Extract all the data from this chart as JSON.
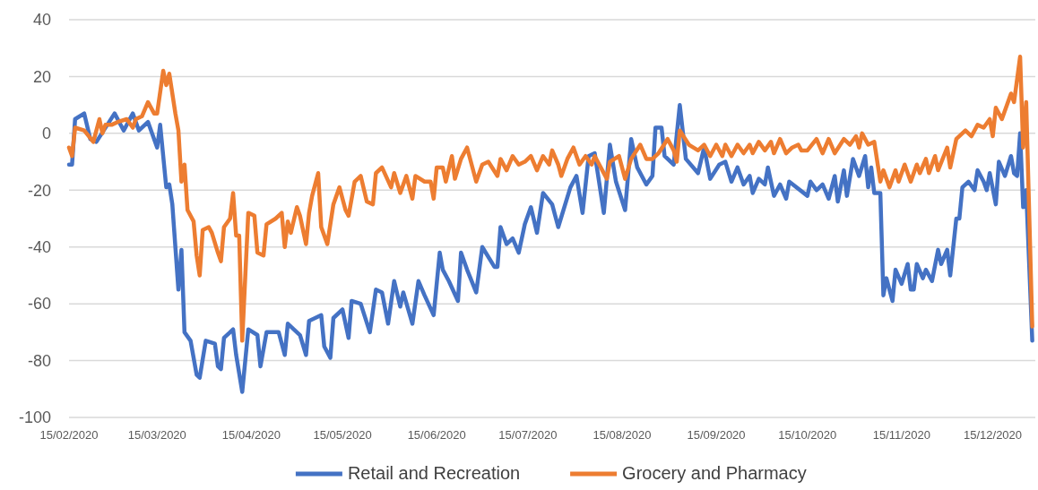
{
  "chart_data": {
    "type": "line",
    "xlim": [
      "2020-02-15",
      "2020-12-29"
    ],
    "ylim": [
      -100,
      40
    ],
    "yticks": [
      -100,
      -80,
      -60,
      -40,
      -20,
      0,
      20,
      40
    ],
    "xticks": [
      {
        "value": "2020-02-15",
        "label": "15/02/2020"
      },
      {
        "value": "2020-03-15",
        "label": "15/03/2020"
      },
      {
        "value": "2020-04-15",
        "label": "15/04/2020"
      },
      {
        "value": "2020-05-15",
        "label": "15/05/2020"
      },
      {
        "value": "2020-06-15",
        "label": "15/06/2020"
      },
      {
        "value": "2020-07-15",
        "label": "15/07/2020"
      },
      {
        "value": "2020-08-15",
        "label": "15/08/2020"
      },
      {
        "value": "2020-09-15",
        "label": "15/09/2020"
      },
      {
        "value": "2020-10-15",
        "label": "15/10/2020"
      },
      {
        "value": "2020-11-15",
        "label": "15/11/2020"
      },
      {
        "value": "2020-12-15",
        "label": "15/12/2020"
      }
    ],
    "grid": "y",
    "legend": "bottom",
    "line_style": "solid",
    "marker": "none",
    "series": [
      {
        "name": "Retail and Recreation",
        "color": "#4472c4",
        "x": [
          "2020-02-15",
          "2020-02-16",
          "2020-02-17",
          "2020-02-20",
          "2020-02-22",
          "2020-02-24",
          "2020-03-01",
          "2020-03-04",
          "2020-03-07",
          "2020-03-09",
          "2020-03-12",
          "2020-03-15",
          "2020-03-16",
          "2020-03-18",
          "2020-03-19",
          "2020-03-20",
          "2020-03-22",
          "2020-03-23",
          "2020-03-24",
          "2020-03-26",
          "2020-03-28",
          "2020-03-29",
          "2020-03-31",
          "2020-04-03",
          "2020-04-04",
          "2020-04-05",
          "2020-04-06",
          "2020-04-09",
          "2020-04-10",
          "2020-04-12",
          "2020-04-14",
          "2020-04-17",
          "2020-04-18",
          "2020-04-20",
          "2020-04-24",
          "2020-04-26",
          "2020-04-27",
          "2020-05-01",
          "2020-05-03",
          "2020-05-04",
          "2020-05-08",
          "2020-05-09",
          "2020-05-11",
          "2020-05-12",
          "2020-05-15",
          "2020-05-17",
          "2020-05-18",
          "2020-05-21",
          "2020-05-24",
          "2020-05-26",
          "2020-05-28",
          "2020-05-30",
          "2020-06-01",
          "2020-06-03",
          "2020-06-04",
          "2020-06-07",
          "2020-06-09",
          "2020-06-11",
          "2020-06-14",
          "2020-06-16",
          "2020-06-17",
          "2020-06-19",
          "2020-06-22",
          "2020-06-23",
          "2020-06-25",
          "2020-06-28",
          "2020-06-30",
          "2020-07-04",
          "2020-07-05",
          "2020-07-06",
          "2020-07-08",
          "2020-07-10",
          "2020-07-12",
          "2020-07-14",
          "2020-07-16",
          "2020-07-18",
          "2020-07-20",
          "2020-07-23",
          "2020-07-25",
          "2020-07-29",
          "2020-07-31",
          "2020-08-02",
          "2020-08-04",
          "2020-08-06",
          "2020-08-09",
          "2020-08-11",
          "2020-08-13",
          "2020-08-16",
          "2020-08-18",
          "2020-08-20",
          "2020-08-23",
          "2020-08-25",
          "2020-08-26",
          "2020-08-28",
          "2020-08-29",
          "2020-09-01",
          "2020-09-03",
          "2020-09-05",
          "2020-09-09",
          "2020-09-11",
          "2020-09-13",
          "2020-09-16",
          "2020-09-18",
          "2020-09-20",
          "2020-09-22",
          "2020-09-24",
          "2020-09-26",
          "2020-09-27",
          "2020-09-29",
          "2020-10-01",
          "2020-10-02",
          "2020-10-04",
          "2020-10-06",
          "2020-10-08",
          "2020-10-09",
          "2020-10-15",
          "2020-10-16",
          "2020-10-18",
          "2020-10-20",
          "2020-10-22",
          "2020-10-24",
          "2020-10-25",
          "2020-10-27",
          "2020-10-28",
          "2020-10-30",
          "2020-11-01",
          "2020-11-03",
          "2020-11-04",
          "2020-11-05",
          "2020-11-06",
          "2020-11-08",
          "2020-11-09",
          "2020-11-10",
          "2020-11-12",
          "2020-11-13",
          "2020-11-15",
          "2020-11-17",
          "2020-11-18",
          "2020-11-19",
          "2020-11-20",
          "2020-11-22",
          "2020-11-23",
          "2020-11-25",
          "2020-11-27",
          "2020-11-28",
          "2020-11-30",
          "2020-12-01",
          "2020-12-03",
          "2020-12-04",
          "2020-12-05",
          "2020-12-07",
          "2020-12-09",
          "2020-12-10",
          "2020-12-12",
          "2020-12-13",
          "2020-12-14",
          "2020-12-16",
          "2020-12-17",
          "2020-12-19",
          "2020-12-21",
          "2020-12-22",
          "2020-12-23",
          "2020-12-24",
          "2020-12-25",
          "2020-12-26",
          "2020-12-28"
        ],
        "values": [
          -11,
          -11,
          5,
          7,
          -2,
          -3,
          7,
          1,
          7,
          1,
          4,
          -5,
          3,
          -19,
          -18,
          -25,
          -55,
          -41,
          -70,
          -73,
          -85,
          -86,
          -73,
          -74,
          -82,
          -83,
          -72,
          -69,
          -78,
          -91,
          -69,
          -71,
          -82,
          -70,
          -70,
          -78,
          -67,
          -71,
          -78,
          -66,
          -64,
          -75,
          -79,
          -65,
          -62,
          -72,
          -59,
          -60,
          -70,
          -55,
          -56,
          -67,
          -52,
          -61,
          -56,
          -67,
          -52,
          -57,
          -64,
          -42,
          -48,
          -52,
          -59,
          -42,
          -48,
          -56,
          -40,
          -47,
          -47,
          -33,
          -39,
          -37,
          -42,
          -32,
          -26,
          -35,
          -21,
          -25,
          -33,
          -19,
          -15,
          -28,
          -8,
          -7,
          -28,
          -4,
          -17,
          -27,
          -2,
          -12,
          -18,
          -15,
          2,
          2,
          -8,
          -11,
          10,
          -9,
          -14,
          -5,
          -16,
          -11,
          -10,
          -17,
          -12,
          -18,
          -15,
          -21,
          -16,
          -18,
          -12,
          -22,
          -18,
          -23,
          -17,
          -22,
          -17,
          -20,
          -18,
          -23,
          -15,
          -24,
          -13,
          -22,
          -9,
          -15,
          -8,
          -19,
          -12,
          -21,
          -21,
          -57,
          -51,
          -59,
          -48,
          -53,
          -46,
          -55,
          -55,
          -46,
          -51,
          -48,
          -52,
          -41,
          -46,
          -41,
          -50,
          -30,
          -30,
          -19,
          -17,
          -20,
          -13,
          -17,
          -20,
          -14,
          -25,
          -10,
          -15,
          -8,
          -14,
          -15,
          0,
          -26,
          -20,
          -73
        ]
      },
      {
        "name": "Grocery and Pharmacy",
        "color": "#ed7d31",
        "x": [
          "2020-02-15",
          "2020-02-16",
          "2020-02-17",
          "2020-02-20",
          "2020-02-23",
          "2020-02-25",
          "2020-02-26",
          "2020-02-27",
          "2020-02-29",
          "2020-03-02",
          "2020-03-05",
          "2020-03-07",
          "2020-03-08",
          "2020-03-10",
          "2020-03-12",
          "2020-03-14",
          "2020-03-15",
          "2020-03-17",
          "2020-03-18",
          "2020-03-19",
          "2020-03-21",
          "2020-03-22",
          "2020-03-23",
          "2020-03-24",
          "2020-03-25",
          "2020-03-27",
          "2020-03-28",
          "2020-03-29",
          "2020-03-30",
          "2020-04-01",
          "2020-04-02",
          "2020-04-04",
          "2020-04-05",
          "2020-04-06",
          "2020-04-08",
          "2020-04-09",
          "2020-04-10",
          "2020-04-11",
          "2020-04-12",
          "2020-04-14",
          "2020-04-16",
          "2020-04-17",
          "2020-04-19",
          "2020-04-20",
          "2020-04-23",
          "2020-04-25",
          "2020-04-26",
          "2020-04-27",
          "2020-04-28",
          "2020-04-30",
          "2020-05-01",
          "2020-05-03",
          "2020-05-04",
          "2020-05-05",
          "2020-05-07",
          "2020-05-08",
          "2020-05-10",
          "2020-05-12",
          "2020-05-13",
          "2020-05-14",
          "2020-05-16",
          "2020-05-17",
          "2020-05-19",
          "2020-05-21",
          "2020-05-23",
          "2020-05-25",
          "2020-05-26",
          "2020-05-28",
          "2020-05-31",
          "2020-06-01",
          "2020-06-03",
          "2020-06-05",
          "2020-06-07",
          "2020-06-08",
          "2020-06-11",
          "2020-06-13",
          "2020-06-14",
          "2020-06-15",
          "2020-06-17",
          "2020-06-18",
          "2020-06-20",
          "2020-06-21",
          "2020-06-23",
          "2020-06-25",
          "2020-06-28",
          "2020-06-30",
          "2020-07-02",
          "2020-07-05",
          "2020-07-06",
          "2020-07-08",
          "2020-07-10",
          "2020-07-12",
          "2020-07-14",
          "2020-07-16",
          "2020-07-18",
          "2020-07-20",
          "2020-07-22",
          "2020-07-23",
          "2020-07-25",
          "2020-07-26",
          "2020-07-28",
          "2020-07-30",
          "2020-08-01",
          "2020-08-03",
          "2020-08-05",
          "2020-08-06",
          "2020-08-10",
          "2020-08-11",
          "2020-08-14",
          "2020-08-16",
          "2020-08-18",
          "2020-08-21",
          "2020-08-23",
          "2020-08-25",
          "2020-08-27",
          "2020-08-30",
          "2020-09-01",
          "2020-09-02",
          "2020-09-03",
          "2020-09-06",
          "2020-09-09",
          "2020-09-11",
          "2020-09-13",
          "2020-09-15",
          "2020-09-17",
          "2020-09-18",
          "2020-09-20",
          "2020-09-22",
          "2020-09-24",
          "2020-09-26",
          "2020-09-27",
          "2020-09-29",
          "2020-10-01",
          "2020-10-03",
          "2020-10-04",
          "2020-10-06",
          "2020-10-08",
          "2020-10-10",
          "2020-10-12",
          "2020-10-13",
          "2020-10-15",
          "2020-10-18",
          "2020-10-20",
          "2020-10-22",
          "2020-10-24",
          "2020-10-27",
          "2020-10-29",
          "2020-10-31",
          "2020-11-01",
          "2020-11-02",
          "2020-11-04",
          "2020-11-06",
          "2020-11-08",
          "2020-11-09",
          "2020-11-11",
          "2020-11-13",
          "2020-11-14",
          "2020-11-16",
          "2020-11-18",
          "2020-11-20",
          "2020-11-21",
          "2020-11-23",
          "2020-11-24",
          "2020-11-26",
          "2020-11-27",
          "2020-11-30",
          "2020-12-01",
          "2020-12-03",
          "2020-12-06",
          "2020-12-08",
          "2020-12-10",
          "2020-12-12",
          "2020-12-14",
          "2020-12-15",
          "2020-12-16",
          "2020-12-18",
          "2020-12-21",
          "2020-12-22",
          "2020-12-24",
          "2020-12-25",
          "2020-12-26",
          "2020-12-28"
        ],
        "values": [
          -5,
          -8,
          2,
          1,
          -3,
          5,
          0,
          3,
          3,
          4,
          5,
          2,
          5,
          6,
          11,
          7,
          7,
          22,
          17,
          21,
          7,
          1,
          -17,
          -11,
          -27,
          -31,
          -43,
          -50,
          -34,
          -33,
          -35,
          -42,
          -45,
          -33,
          -30,
          -21,
          -36,
          -36,
          -73,
          -28,
          -29,
          -42,
          -43,
          -32,
          -30,
          -28,
          -40,
          -31,
          -35,
          -26,
          -29,
          -39,
          -28,
          -22,
          -14,
          -33,
          -39,
          -25,
          -22,
          -19,
          -27,
          -29,
          -17,
          -15,
          -24,
          -25,
          -14,
          -12,
          -19,
          -14,
          -21,
          -15,
          -23,
          -15,
          -17,
          -17,
          -23,
          -12,
          -12,
          -17,
          -8,
          -16,
          -9,
          -5,
          -17,
          -11,
          -10,
          -15,
          -9,
          -13,
          -8,
          -11,
          -10,
          -8,
          -13,
          -8,
          -11,
          -6,
          -11,
          -15,
          -9,
          -5,
          -11,
          -8,
          -11,
          -8,
          -16,
          -10,
          -8,
          -16,
          -9,
          -4,
          -9,
          -9,
          -7,
          -2,
          -6,
          -10,
          1,
          -4,
          -6,
          -4,
          -8,
          -4,
          -8,
          -4,
          -8,
          -4,
          -7,
          -4,
          -7,
          -3,
          -6,
          -3,
          -7,
          -2,
          -7,
          -5,
          -4,
          -6,
          -6,
          -2,
          -7,
          -2,
          -7,
          -2,
          -4,
          -1,
          -5,
          0,
          -4,
          -3,
          -17,
          -13,
          -19,
          -13,
          -17,
          -11,
          -17,
          -11,
          -14,
          -9,
          -14,
          -8,
          -13,
          -5,
          -12,
          -2,
          1,
          -1,
          3,
          2,
          5,
          -1,
          9,
          5,
          14,
          11,
          27,
          -5,
          11,
          -68
        ]
      }
    ]
  }
}
